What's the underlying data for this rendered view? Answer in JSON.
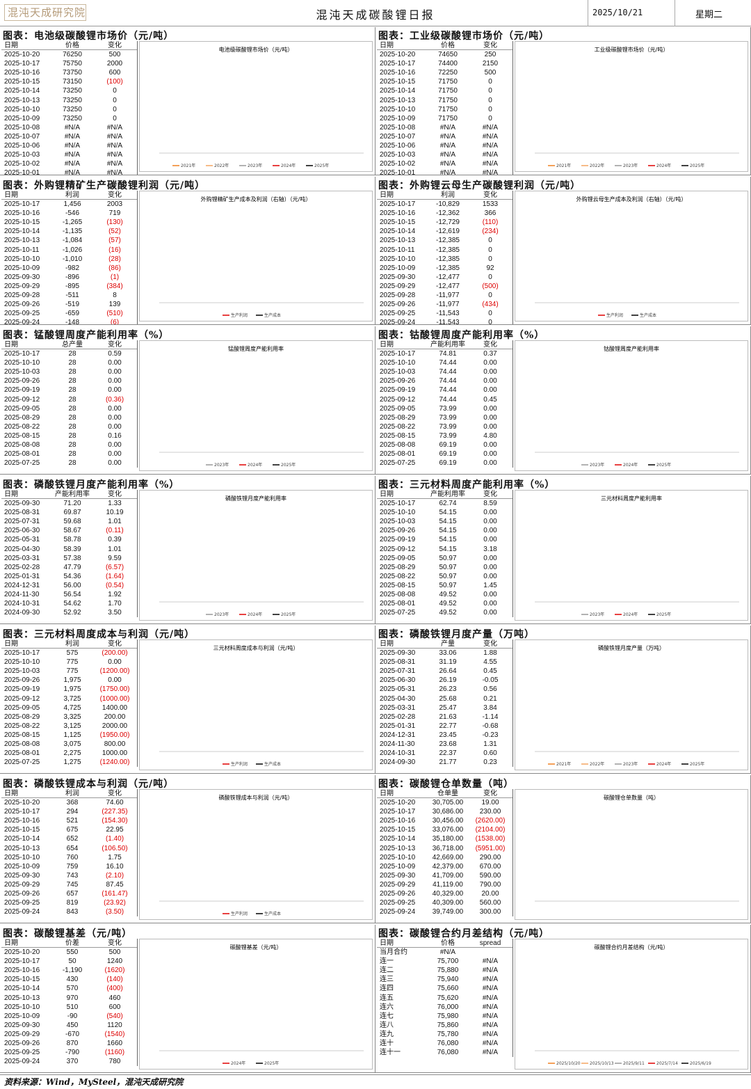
{
  "header": {
    "logo": "混沌天成研究院",
    "title": "混沌天成碳酸锂日报",
    "date": "2025/10/21",
    "weekday": "星期二"
  },
  "footer": "资料来源：Wind，MySteel，混沌天成研究院",
  "panels": [
    {
      "title": "图表：电池级碳酸锂市场价（元/吨）",
      "headers": [
        "日期",
        "价格",
        "变化"
      ],
      "rows": [
        [
          "2025-10-20",
          "76250",
          "500"
        ],
        [
          "2025-10-17",
          "75750",
          "2000"
        ],
        [
          "2025-10-16",
          "73750",
          "600"
        ],
        [
          "2025-10-15",
          "73150",
          "(100)"
        ],
        [
          "2025-10-14",
          "73250",
          "0"
        ],
        [
          "2025-10-13",
          "73250",
          "0"
        ],
        [
          "2025-10-10",
          "73250",
          "0"
        ],
        [
          "2025-10-09",
          "73250",
          "0"
        ],
        [
          "2025-10-08",
          "#N/A",
          "#N/A"
        ],
        [
          "2025-10-07",
          "#N/A",
          "#N/A"
        ],
        [
          "2025-10-06",
          "#N/A",
          "#N/A"
        ],
        [
          "2025-10-03",
          "#N/A",
          "#N/A"
        ],
        [
          "2025-10-02",
          "#N/A",
          "#N/A"
        ],
        [
          "2025-10-01",
          "#N/A",
          "#N/A"
        ]
      ],
      "chart": {
        "title": "电池级碳酸锂市场价（元/吨）",
        "legend": [
          "2021年",
          "2022年",
          "2023年",
          "2024年",
          "2025年"
        ]
      }
    },
    {
      "title": "图表：工业级碳酸锂市场价（元/吨）",
      "headers": [
        "日期",
        "价格",
        "变化"
      ],
      "rows": [
        [
          "2025-10-20",
          "74650",
          "250"
        ],
        [
          "2025-10-17",
          "74400",
          "2150"
        ],
        [
          "2025-10-16",
          "72250",
          "500"
        ],
        [
          "2025-10-15",
          "71750",
          "0"
        ],
        [
          "2025-10-14",
          "71750",
          "0"
        ],
        [
          "2025-10-13",
          "71750",
          "0"
        ],
        [
          "2025-10-10",
          "71750",
          "0"
        ],
        [
          "2025-10-09",
          "71750",
          "0"
        ],
        [
          "2025-10-08",
          "#N/A",
          "#N/A"
        ],
        [
          "2025-10-07",
          "#N/A",
          "#N/A"
        ],
        [
          "2025-10-06",
          "#N/A",
          "#N/A"
        ],
        [
          "2025-10-03",
          "#N/A",
          "#N/A"
        ],
        [
          "2025-10-02",
          "#N/A",
          "#N/A"
        ],
        [
          "2025-10-01",
          "#N/A",
          "#N/A"
        ]
      ],
      "chart": {
        "title": "工业级碳酸锂市场价（元/吨）",
        "legend": [
          "2021年",
          "2022年",
          "2023年",
          "2024年",
          "2025年"
        ]
      }
    },
    {
      "title": "图表：外购锂精矿生产碳酸锂利润（元/吨）",
      "headers": [
        "日期",
        "利润",
        "变化"
      ],
      "rows": [
        [
          "2025-10-17",
          "1,456",
          "2003"
        ],
        [
          "2025-10-16",
          "-546",
          "719"
        ],
        [
          "2025-10-15",
          "-1,265",
          "(130)"
        ],
        [
          "2025-10-14",
          "-1,135",
          "(52)"
        ],
        [
          "2025-10-13",
          "-1,084",
          "(57)"
        ],
        [
          "2025-10-11",
          "-1,026",
          "(16)"
        ],
        [
          "2025-10-10",
          "-1,010",
          "(28)"
        ],
        [
          "2025-10-09",
          "-982",
          "(86)"
        ],
        [
          "2025-09-30",
          "-896",
          "(1)"
        ],
        [
          "2025-09-29",
          "-895",
          "(384)"
        ],
        [
          "2025-09-28",
          "-511",
          "8"
        ],
        [
          "2025-09-26",
          "-519",
          "139"
        ],
        [
          "2025-09-25",
          "-659",
          "(510)"
        ],
        [
          "2025-09-24",
          "-148",
          "(6)"
        ]
      ],
      "chart": {
        "title": "外购锂精矿生产成本及利润（右轴）（元/吨）",
        "legend": [
          "生产利润",
          "生产成本"
        ]
      }
    },
    {
      "title": "图表：外购锂云母生产碳酸锂利润（元/吨）",
      "headers": [
        "日期",
        "利润",
        "变化"
      ],
      "rows": [
        [
          "2025-10-17",
          "-10,829",
          "1533"
        ],
        [
          "2025-10-16",
          "-12,362",
          "366"
        ],
        [
          "2025-10-15",
          "-12,729",
          "(110)"
        ],
        [
          "2025-10-14",
          "-12,619",
          "(234)"
        ],
        [
          "2025-10-13",
          "-12,385",
          "0"
        ],
        [
          "2025-10-11",
          "-12,385",
          "0"
        ],
        [
          "2025-10-10",
          "-12,385",
          "0"
        ],
        [
          "2025-10-09",
          "-12,385",
          "92"
        ],
        [
          "2025-09-30",
          "-12,477",
          "0"
        ],
        [
          "2025-09-29",
          "-12,477",
          "(500)"
        ],
        [
          "2025-09-28",
          "-11,977",
          "0"
        ],
        [
          "2025-09-26",
          "-11,977",
          "(434)"
        ],
        [
          "2025-09-25",
          "-11,543",
          "0"
        ],
        [
          "2025-09-24",
          "-11,543",
          "0"
        ]
      ],
      "chart": {
        "title": "外购锂云母生产成本及利润（右轴）（元/吨）",
        "legend": [
          "生产利润",
          "生产成本"
        ]
      }
    },
    {
      "title": "图表：锰酸锂周度产能利用率（%）",
      "headers": [
        "日期",
        "总产量",
        "变化"
      ],
      "rows": [
        [
          "2025-10-17",
          "28",
          "0.59"
        ],
        [
          "2025-10-10",
          "28",
          "0.00"
        ],
        [
          "2025-10-03",
          "28",
          "0.00"
        ],
        [
          "2025-09-26",
          "28",
          "0.00"
        ],
        [
          "2025-09-19",
          "28",
          "0.00"
        ],
        [
          "2025-09-12",
          "28",
          "(0.36)"
        ],
        [
          "2025-09-05",
          "28",
          "0.00"
        ],
        [
          "2025-08-29",
          "28",
          "0.00"
        ],
        [
          "2025-08-22",
          "28",
          "0.00"
        ],
        [
          "2025-08-15",
          "28",
          "0.16"
        ],
        [
          "2025-08-08",
          "28",
          "0.00"
        ],
        [
          "2025-08-01",
          "28",
          "0.00"
        ],
        [
          "2025-07-25",
          "28",
          "0.00"
        ]
      ],
      "chart": {
        "title": "锰酸锂周度产能利用率",
        "legend": [
          "2023年",
          "2024年",
          "2025年"
        ]
      }
    },
    {
      "title": "图表：钴酸锂周度产能利用率（%）",
      "headers": [
        "日期",
        "产能利用率",
        "变化"
      ],
      "rows": [
        [
          "2025-10-17",
          "74.81",
          "0.37"
        ],
        [
          "2025-10-10",
          "74.44",
          "0.00"
        ],
        [
          "2025-10-03",
          "74.44",
          "0.00"
        ],
        [
          "2025-09-26",
          "74.44",
          "0.00"
        ],
        [
          "2025-09-19",
          "74.44",
          "0.00"
        ],
        [
          "2025-09-12",
          "74.44",
          "0.45"
        ],
        [
          "2025-09-05",
          "73.99",
          "0.00"
        ],
        [
          "2025-08-29",
          "73.99",
          "0.00"
        ],
        [
          "2025-08-22",
          "73.99",
          "0.00"
        ],
        [
          "2025-08-15",
          "73.99",
          "4.80"
        ],
        [
          "2025-08-08",
          "69.19",
          "0.00"
        ],
        [
          "2025-08-01",
          "69.19",
          "0.00"
        ],
        [
          "2025-07-25",
          "69.19",
          "0.00"
        ]
      ],
      "chart": {
        "title": "钴酸锂周度产能利用率",
        "legend": [
          "2023年",
          "2024年",
          "2025年"
        ]
      }
    },
    {
      "title": "图表：磷酸铁锂月度产能利用率（%）",
      "headers": [
        "日期",
        "产能利用率",
        "变化"
      ],
      "rows": [
        [
          "2025-09-30",
          "71.20",
          "1.33"
        ],
        [
          "2025-08-31",
          "69.87",
          "10.19"
        ],
        [
          "2025-07-31",
          "59.68",
          "1.01"
        ],
        [
          "2025-06-30",
          "58.67",
          "(0.11)"
        ],
        [
          "2025-05-31",
          "58.78",
          "0.39"
        ],
        [
          "2025-04-30",
          "58.39",
          "1.01"
        ],
        [
          "2025-03-31",
          "57.38",
          "9.59"
        ],
        [
          "2025-02-28",
          "47.79",
          "(6.57)"
        ],
        [
          "2025-01-31",
          "54.36",
          "(1.64)"
        ],
        [
          "2024-12-31",
          "56.00",
          "(0.54)"
        ],
        [
          "2024-11-30",
          "56.54",
          "1.92"
        ],
        [
          "2024-10-31",
          "54.62",
          "1.70"
        ],
        [
          "2024-09-30",
          "52.92",
          "3.50"
        ]
      ],
      "chart": {
        "title": "磷酸铁锂月度产能利用率",
        "legend": [
          "2023年",
          "2024年",
          "2025年"
        ]
      }
    },
    {
      "title": "图表：三元材料周度产能利用率（%）",
      "headers": [
        "日期",
        "产能利用率",
        "变化"
      ],
      "rows": [
        [
          "2025-10-17",
          "62.74",
          "8.59"
        ],
        [
          "2025-10-10",
          "54.15",
          "0.00"
        ],
        [
          "2025-10-03",
          "54.15",
          "0.00"
        ],
        [
          "2025-09-26",
          "54.15",
          "0.00"
        ],
        [
          "2025-09-19",
          "54.15",
          "0.00"
        ],
        [
          "2025-09-12",
          "54.15",
          "3.18"
        ],
        [
          "2025-09-05",
          "50.97",
          "0.00"
        ],
        [
          "2025-08-29",
          "50.97",
          "0.00"
        ],
        [
          "2025-08-22",
          "50.97",
          "0.00"
        ],
        [
          "2025-08-15",
          "50.97",
          "1.45"
        ],
        [
          "2025-08-08",
          "49.52",
          "0.00"
        ],
        [
          "2025-08-01",
          "49.52",
          "0.00"
        ],
        [
          "2025-07-25",
          "49.52",
          "0.00"
        ]
      ],
      "chart": {
        "title": "三元材料周度产能利用率",
        "legend": [
          "2023年",
          "2024年",
          "2025年"
        ]
      }
    },
    {
      "title": "图表：三元材料周度成本与利润（元/吨）",
      "headers": [
        "日期",
        "利润",
        "变化"
      ],
      "rows": [
        [
          "2025-10-17",
          "575",
          "(200.00)"
        ],
        [
          "2025-10-10",
          "775",
          "0.00"
        ],
        [
          "2025-10-03",
          "775",
          "(1200.00)"
        ],
        [
          "2025-09-26",
          "1,975",
          "0.00"
        ],
        [
          "2025-09-19",
          "1,975",
          "(1750.00)"
        ],
        [
          "2025-09-12",
          "3,725",
          "(1000.00)"
        ],
        [
          "2025-09-05",
          "4,725",
          "1400.00"
        ],
        [
          "2025-08-29",
          "3,325",
          "200.00"
        ],
        [
          "2025-08-22",
          "3,125",
          "2000.00"
        ],
        [
          "2025-08-15",
          "1,125",
          "(1950.00)"
        ],
        [
          "2025-08-08",
          "3,075",
          "800.00"
        ],
        [
          "2025-08-01",
          "2,275",
          "1000.00"
        ],
        [
          "2025-07-25",
          "1,275",
          "(1240.00)"
        ]
      ],
      "chart": {
        "title": "三元材料周度成本与利润（元/吨）",
        "legend": [
          "生产利润",
          "生产成本"
        ]
      }
    },
    {
      "title": "图表：磷酸铁锂月度产量（万吨）",
      "headers": [
        "日期",
        "产量",
        "变化"
      ],
      "rows": [
        [
          "2025-09-30",
          "33.06",
          "1.88"
        ],
        [
          "2025-08-31",
          "31.19",
          "4.55"
        ],
        [
          "2025-07-31",
          "26.64",
          "0.45"
        ],
        [
          "2025-06-30",
          "26.19",
          "-0.05"
        ],
        [
          "2025-05-31",
          "26.23",
          "0.56"
        ],
        [
          "2025-04-30",
          "25.68",
          "0.21"
        ],
        [
          "2025-03-31",
          "25.47",
          "3.84"
        ],
        [
          "2025-02-28",
          "21.63",
          "-1.14"
        ],
        [
          "2025-01-31",
          "22.77",
          "-0.68"
        ],
        [
          "2024-12-31",
          "23.45",
          "-0.23"
        ],
        [
          "2024-11-30",
          "23.68",
          "1.31"
        ],
        [
          "2024-10-31",
          "22.37",
          "0.60"
        ],
        [
          "2024-09-30",
          "21.77",
          "0.23"
        ]
      ],
      "chart": {
        "title": "磷酸铁锂月度产量（万吨）",
        "legend": [
          "2021年",
          "2022年",
          "2023年",
          "2024年",
          "2025年"
        ]
      }
    },
    {
      "title": "图表：磷酸铁锂成本与利润（元/吨）",
      "headers": [
        "日期",
        "利润",
        "变化"
      ],
      "rows": [
        [
          "2025-10-20",
          "368",
          "74.60"
        ],
        [
          "2025-10-17",
          "294",
          "(227.35)"
        ],
        [
          "2025-10-16",
          "521",
          "(154.30)"
        ],
        [
          "2025-10-15",
          "675",
          "22.95"
        ],
        [
          "2025-10-14",
          "652",
          "(1.40)"
        ],
        [
          "2025-10-13",
          "654",
          "(106.50)"
        ],
        [
          "2025-10-10",
          "760",
          "1.75"
        ],
        [
          "2025-10-09",
          "759",
          "16.10"
        ],
        [
          "2025-09-30",
          "743",
          "(2.10)"
        ],
        [
          "2025-09-29",
          "745",
          "87.45"
        ],
        [
          "2025-09-26",
          "657",
          "(161.47)"
        ],
        [
          "2025-09-25",
          "819",
          "(23.92)"
        ],
        [
          "2025-09-24",
          "843",
          "(3.50)"
        ]
      ],
      "chart": {
        "title": "磷酸铁锂成本与利润（元/吨）",
        "legend": [
          "生产利润",
          "生产成本"
        ]
      }
    },
    {
      "title": "图表：碳酸锂仓单数量（吨）",
      "headers": [
        "日期",
        "仓单量",
        "变化"
      ],
      "rows": [
        [
          "2025-10-20",
          "30,705.00",
          "19.00"
        ],
        [
          "2025-10-17",
          "30,686.00",
          "230.00"
        ],
        [
          "2025-10-16",
          "30,456.00",
          "(2620.00)"
        ],
        [
          "2025-10-15",
          "33,076.00",
          "(2104.00)"
        ],
        [
          "2025-10-14",
          "35,180.00",
          "(1538.00)"
        ],
        [
          "2025-10-13",
          "36,718.00",
          "(5951.00)"
        ],
        [
          "2025-10-10",
          "42,669.00",
          "290.00"
        ],
        [
          "2025-10-09",
          "42,379.00",
          "670.00"
        ],
        [
          "2025-09-30",
          "41,709.00",
          "590.00"
        ],
        [
          "2025-09-29",
          "41,119.00",
          "790.00"
        ],
        [
          "2025-09-26",
          "40,329.00",
          "20.00"
        ],
        [
          "2025-09-25",
          "40,309.00",
          "560.00"
        ],
        [
          "2025-09-24",
          "39,749.00",
          "300.00"
        ]
      ],
      "chart": {
        "title": "碳酸锂仓单数量（吨）",
        "legend": []
      }
    },
    {
      "title": "图表：碳酸锂基差（元/吨）",
      "headers": [
        "日期",
        "价差",
        "变化"
      ],
      "rows": [
        [
          "2025-10-20",
          "550",
          "500"
        ],
        [
          "2025-10-17",
          "50",
          "1240"
        ],
        [
          "2025-10-16",
          "-1,190",
          "(1620)"
        ],
        [
          "2025-10-15",
          "430",
          "(140)"
        ],
        [
          "2025-10-14",
          "570",
          "(400)"
        ],
        [
          "2025-10-13",
          "970",
          "460"
        ],
        [
          "2025-10-10",
          "510",
          "600"
        ],
        [
          "2025-10-09",
          "-90",
          "(540)"
        ],
        [
          "2025-09-30",
          "450",
          "1120"
        ],
        [
          "2025-09-29",
          "-670",
          "(1540)"
        ],
        [
          "2025-09-26",
          "870",
          "1660"
        ],
        [
          "2025-09-25",
          "-790",
          "(1160)"
        ],
        [
          "2025-09-24",
          "370",
          "780"
        ]
      ],
      "chart": {
        "title": "碳酸锂基差（元/吨）",
        "legend": [
          "2024年",
          "2025年"
        ]
      }
    },
    {
      "title": "图表：碳酸锂合约月差结构（元/吨）",
      "headers": [
        "日期",
        "价格",
        "spread"
      ],
      "rows": [
        [
          "当月合约",
          "#N/A",
          ""
        ],
        [
          "连一",
          "75,700",
          "#N/A"
        ],
        [
          "连二",
          "75,880",
          "#N/A"
        ],
        [
          "连三",
          "75,940",
          "#N/A"
        ],
        [
          "连四",
          "75,660",
          "#N/A"
        ],
        [
          "连五",
          "75,620",
          "#N/A"
        ],
        [
          "连六",
          "76,000",
          "#N/A"
        ],
        [
          "连七",
          "75,980",
          "#N/A"
        ],
        [
          "连八",
          "75,860",
          "#N/A"
        ],
        [
          "连九",
          "75,780",
          "#N/A"
        ],
        [
          "连十",
          "76,080",
          "#N/A"
        ],
        [
          "连十一",
          "76,080",
          "#N/A"
        ]
      ],
      "chart": {
        "title": "碳酸锂合约月差结构（元/吨）",
        "legend": [
          "2025/10/20",
          "2025/10/13",
          "2025/9/11",
          "2025/7/14",
          "2025/6/19"
        ]
      }
    }
  ]
}
